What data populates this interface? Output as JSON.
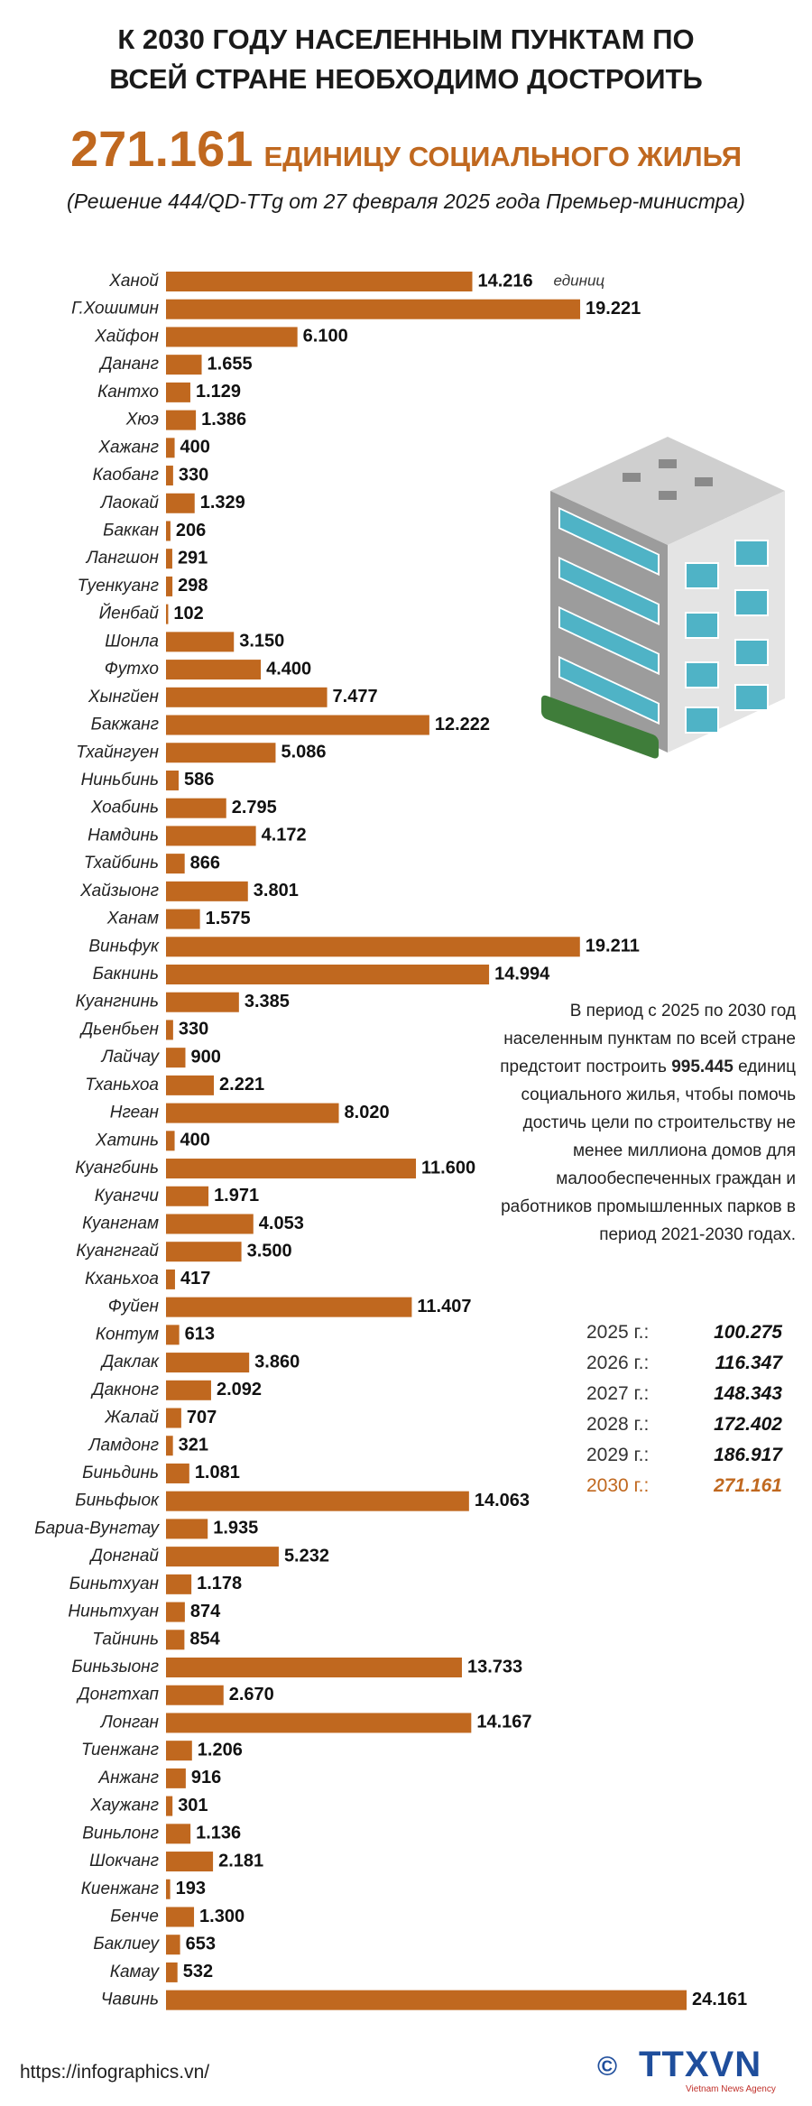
{
  "header": {
    "title_line1": "К 2030 ГОДУ НАСЕЛЕННЫМ ПУНКТАМ ПО",
    "title_line2": "ВСЕЙ СТРАНЕ НЕОБХОДИМО ДОСТРОИТЬ",
    "highlight_number": "271.161",
    "highlight_text": "ЕДИНИЦУ СОЦИАЛЬНОГО ЖИЛЬЯ",
    "subtitle": "(Решение 444/QD-TTg от 27 февраля 2025 года Премьер-министра)"
  },
  "chart_data": {
    "type": "bar",
    "color": "#c0681f",
    "unit_note": "единиц",
    "categories": [
      "Ханой",
      "Г.Хошимин",
      "Хайфон",
      "Дананг",
      "Кантхо",
      "Хюэ",
      "Хажанг",
      "Каобанг",
      "Лаокай",
      "Баккан",
      "Лангшон",
      "Туенкуанг",
      "Йенбай",
      "Шонла",
      "Футхо",
      "Хынгйен",
      "Бакжанг",
      "Тхайнгуен",
      "Ниньбинь",
      "Хоабинь",
      "Намдинь",
      "Тхайбинь",
      "Хайзыонг",
      "Ханам",
      "Виньфук",
      "Бакнинь",
      "Куангнинь",
      "Дьенбьен",
      "Лайчау",
      "Тханьхоа",
      "Нгеан",
      "Хатинь",
      "Куангбинь",
      "Куангчи",
      "Куангнам",
      "Куангнгай",
      "Кханьхоа",
      "Фуйен",
      "Контум",
      "Даклак",
      "Дакнонг",
      "Жалай",
      "Ламдонг",
      "Биньдинь",
      "Биньфыок",
      "Бариа-Вунгтау",
      "Донгнай",
      "Биньтхуан",
      "Ниньтхуан",
      "Тайнинь",
      "Биньзыонг",
      "Донгтхап",
      "Лонган",
      "Тиенжанг",
      "Анжанг",
      "Хаужанг",
      "Виньлонг",
      "Шокчанг",
      "Киенжанг",
      "Бенче",
      "Баклиеу",
      "Камау",
      "Чавинь"
    ],
    "values": [
      14216,
      19221,
      6100,
      1655,
      1129,
      1386,
      400,
      330,
      1329,
      206,
      291,
      298,
      102,
      3150,
      4400,
      7477,
      12222,
      5086,
      586,
      2795,
      4172,
      866,
      3801,
      1575,
      19211,
      14994,
      3385,
      330,
      900,
      2221,
      8020,
      400,
      11600,
      1971,
      4053,
      3500,
      417,
      11407,
      613,
      3860,
      2092,
      707,
      321,
      1081,
      14063,
      1935,
      5232,
      1178,
      874,
      854,
      13733,
      2670,
      14167,
      1206,
      916,
      301,
      1136,
      2181,
      193,
      1300,
      653,
      532,
      24161
    ],
    "value_labels": [
      "14.216",
      "19.221",
      "6.100",
      "1.655",
      "1.129",
      "1.386",
      "400",
      "330",
      "1.329",
      "206",
      "291",
      "298",
      "102",
      "3.150",
      "4.400",
      "7.477",
      "12.222",
      "5.086",
      "586",
      "2.795",
      "4.172",
      "866",
      "3.801",
      "1.575",
      "19.211",
      "14.994",
      "3.385",
      "330",
      "900",
      "2.221",
      "8.020",
      "400",
      "11.600",
      "1.971",
      "4.053",
      "3.500",
      "417",
      "11.407",
      "613",
      "3.860",
      "2.092",
      "707",
      "321",
      "1.081",
      "14.063",
      "1.935",
      "5.232",
      "1.178",
      "874",
      "854",
      "13.733",
      "2.670",
      "14.167",
      "1.206",
      "916",
      "301",
      "1.136",
      "2.181",
      "193",
      "1.300",
      "653",
      "532",
      "24.161"
    ]
  },
  "note": {
    "text_before": "В период с 2025 по 2030 год населенным пунктам по всей стране предстоит построить",
    "highlight": "995.445",
    "text_after": "единиц социального жилья, чтобы помочь достичь цели по строительству не менее миллиона домов для малообеспеченных граждан и работников промышленных парков в период 2021-2030 годах."
  },
  "yearly_targets": [
    {
      "year": "2025 г.:",
      "value": "100.275"
    },
    {
      "year": "2026 г.:",
      "value": "116.347"
    },
    {
      "year": "2027 г.:",
      "value": "148.343"
    },
    {
      "year": "2028 г.:",
      "value": "172.402"
    },
    {
      "year": "2029 г.:",
      "value": "186.917"
    },
    {
      "year": "2030 г.:",
      "value": "271.161"
    }
  ],
  "footer": {
    "url": "https://infographics.vn/",
    "copyright": "©",
    "logo": "TTXVN",
    "agency": "Vietnam News Agency"
  }
}
